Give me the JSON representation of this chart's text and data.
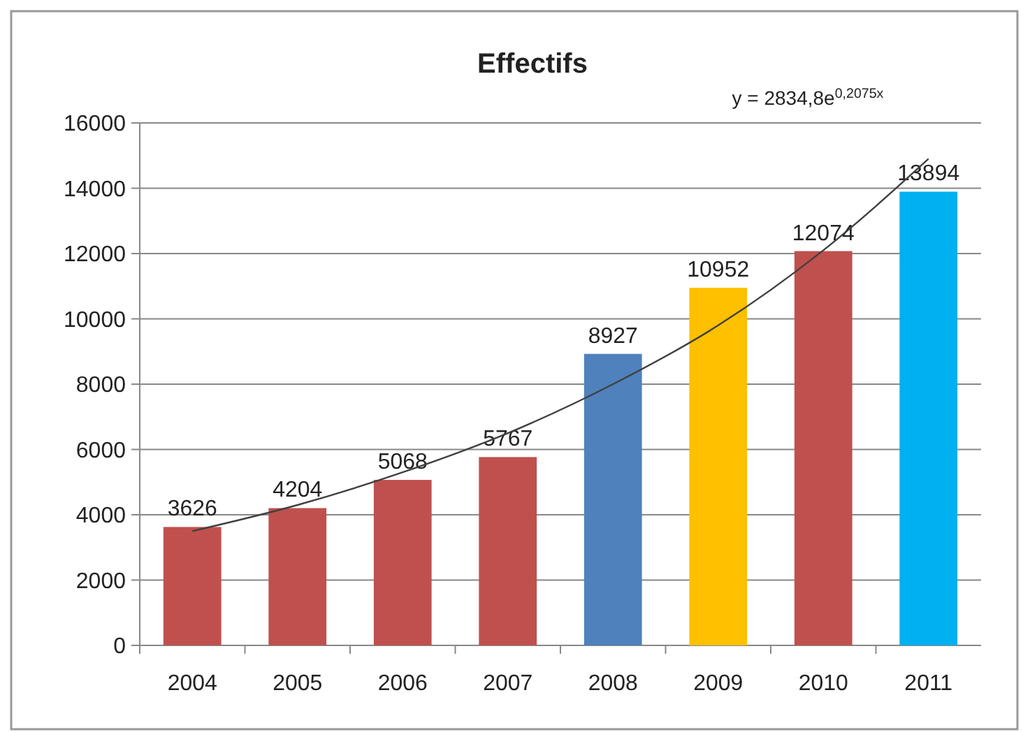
{
  "chart_data": {
    "type": "bar",
    "title": "Effectifs",
    "categories": [
      "2004",
      "2005",
      "2006",
      "2007",
      "2008",
      "2009",
      "2010",
      "2011"
    ],
    "series": [
      {
        "values": [
          3626,
          4204,
          5068,
          5767,
          8927,
          10952,
          12074,
          13894
        ],
        "colors": [
          "#c0504d",
          "#c0504d",
          "#c0504d",
          "#c0504d",
          "#4f81bd",
          "#ffc000",
          "#c0504d",
          "#00b0f0"
        ],
        "value_labels": [
          "3626",
          "4204",
          "5068",
          "5767",
          "8927",
          "10952",
          "12074",
          "13894"
        ]
      },
      {
        "type": "line",
        "color": "#404040",
        "values": [
          3500,
          4300,
          5300,
          6500,
          8000,
          9800,
          12100,
          14900
        ]
      }
    ],
    "ylim": [
      0,
      16000
    ],
    "yticks": [
      0,
      2000,
      4000,
      6000,
      8000,
      10000,
      12000,
      14000,
      16000
    ],
    "grid": "y",
    "annotations": [
      "y = 2834,8e$^{0,2075x}$"
    ]
  }
}
